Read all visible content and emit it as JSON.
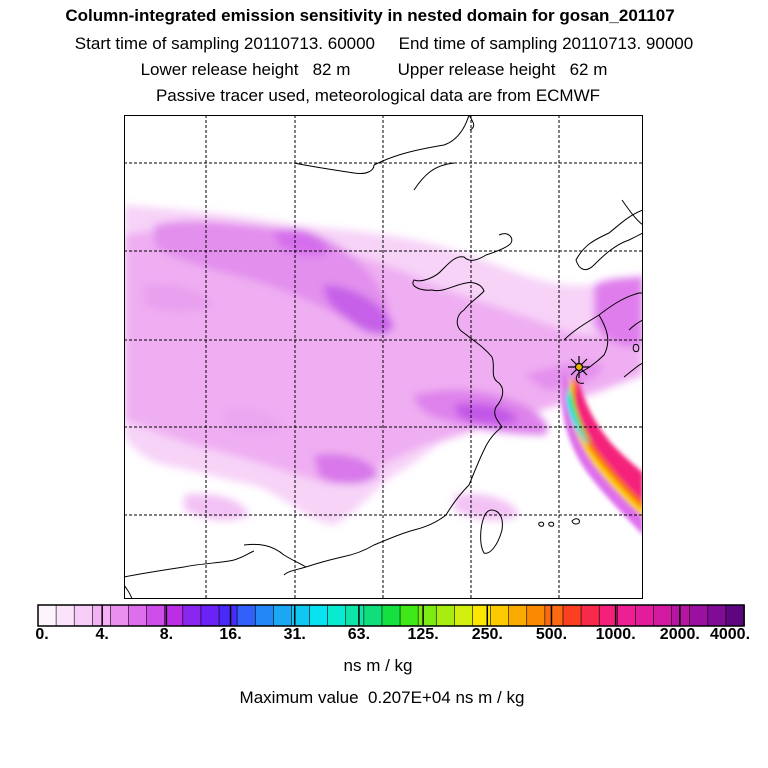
{
  "header": {
    "title": "Column-integrated emission sensitivity in nested domain for gosan_201107",
    "line2": "Start time of sampling 20110713. 60000     End time of sampling 20110713. 90000",
    "line3": "Lower release height   82 m          Upper release height   62 m",
    "line4": "Passive tracer used, meteorological data are from ECMWF"
  },
  "colorbar": {
    "tick_labels": [
      "0.",
      "4.",
      "8.",
      "16.",
      "31.",
      "63.",
      "125.",
      "250.",
      "500.",
      "1000.",
      "2000.",
      "4000."
    ],
    "colors": [
      "#fdf4fd",
      "#fbe4fb",
      "#f7cdf8",
      "#f2b2f4",
      "#e98ff0",
      "#df6eec",
      "#cf4dea",
      "#bb2ee6",
      "#8a27ef",
      "#6a22f6",
      "#4a2af8",
      "#3360fa",
      "#2487f8",
      "#1aa8f5",
      "#10c6f3",
      "#08e2f1",
      "#08ebd0",
      "#0ee5a8",
      "#10dd7c",
      "#14e040",
      "#40e818",
      "#7ceb14",
      "#a8ec10",
      "#d2ee0c",
      "#fbe700",
      "#fbcb00",
      "#fbab00",
      "#fb8a00",
      "#fb6a10",
      "#fb3f20",
      "#f82a4a",
      "#f4207a",
      "#ee1f92",
      "#e21c9a",
      "#d2199f",
      "#b615a0",
      "#9c10a0",
      "#7e0c95",
      "#5e0680"
    ]
  },
  "units": "ns m / kg",
  "max_value": "Maximum value  0.207E+04 ns m / kg",
  "map": {
    "receptor_icon": "star-marker-icon",
    "plume_colors": [
      "#f7cdf8",
      "#df6eec",
      "#bb2ee6",
      "#8a27ef",
      "#4a2af8",
      "#fbcb00",
      "#fb6a10",
      "#f4207a",
      "#08e2f1",
      "#40e818"
    ]
  }
}
